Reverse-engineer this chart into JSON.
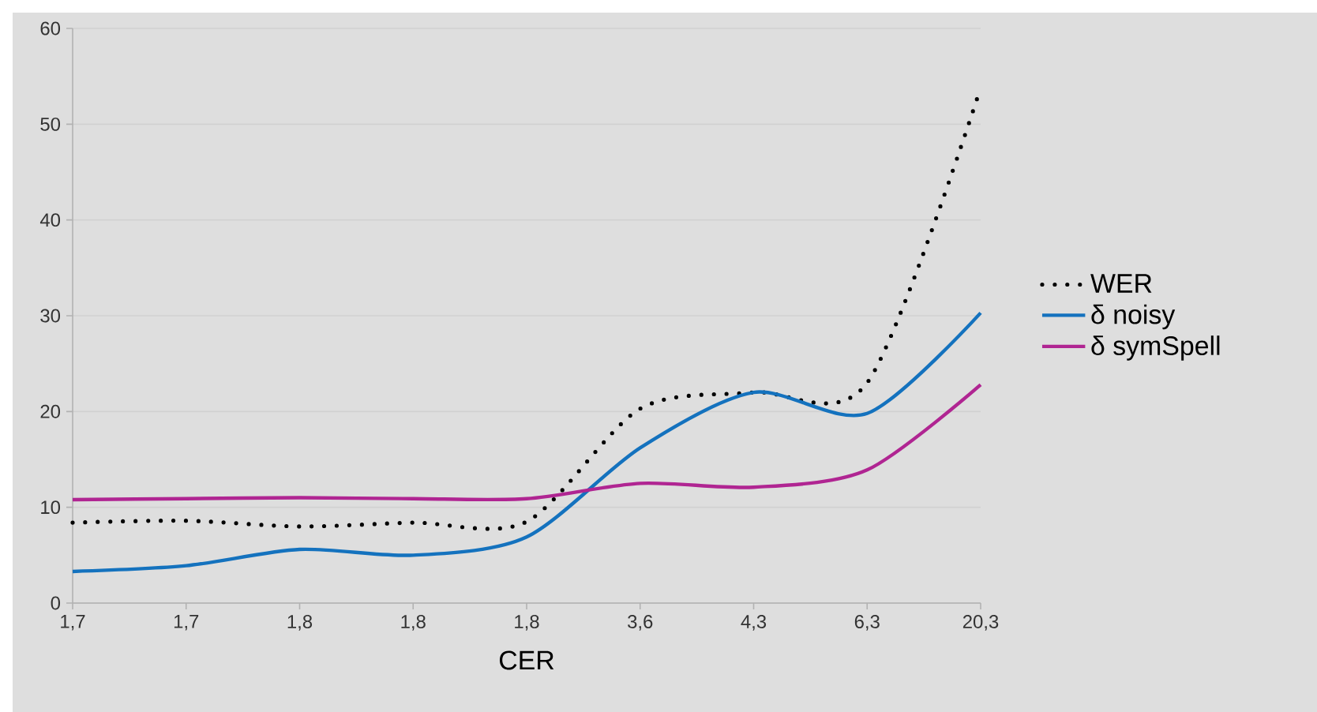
{
  "chart_data": {
    "type": "line",
    "xlabel": "CER",
    "categories": [
      "1,7",
      "1,7",
      "1,8",
      "1,8",
      "1,8",
      "3,6",
      "4,3",
      "6,3",
      "20,3"
    ],
    "series": [
      {
        "name": "WER",
        "color": "#000000",
        "line_style": "dotted",
        "values": [
          8.4,
          8.6,
          8.0,
          8.4,
          8.5,
          20.3,
          22.0,
          23.0,
          53.8
        ]
      },
      {
        "name": "δ noisy",
        "color": "#1472be",
        "line_style": "solid",
        "values": [
          3.3,
          3.9,
          5.6,
          5.0,
          6.9,
          16.2,
          22.0,
          19.8,
          30.3
        ]
      },
      {
        "name": "δ symSpell",
        "color": "#b02592",
        "line_style": "solid",
        "values": [
          10.8,
          10.9,
          11.0,
          10.9,
          10.9,
          12.5,
          12.1,
          13.9,
          22.8
        ]
      }
    ],
    "ylim": [
      0,
      60
    ],
    "yticks": [
      0,
      10,
      20,
      30,
      40,
      50,
      60
    ],
    "grid": "y",
    "legend": "right"
  }
}
